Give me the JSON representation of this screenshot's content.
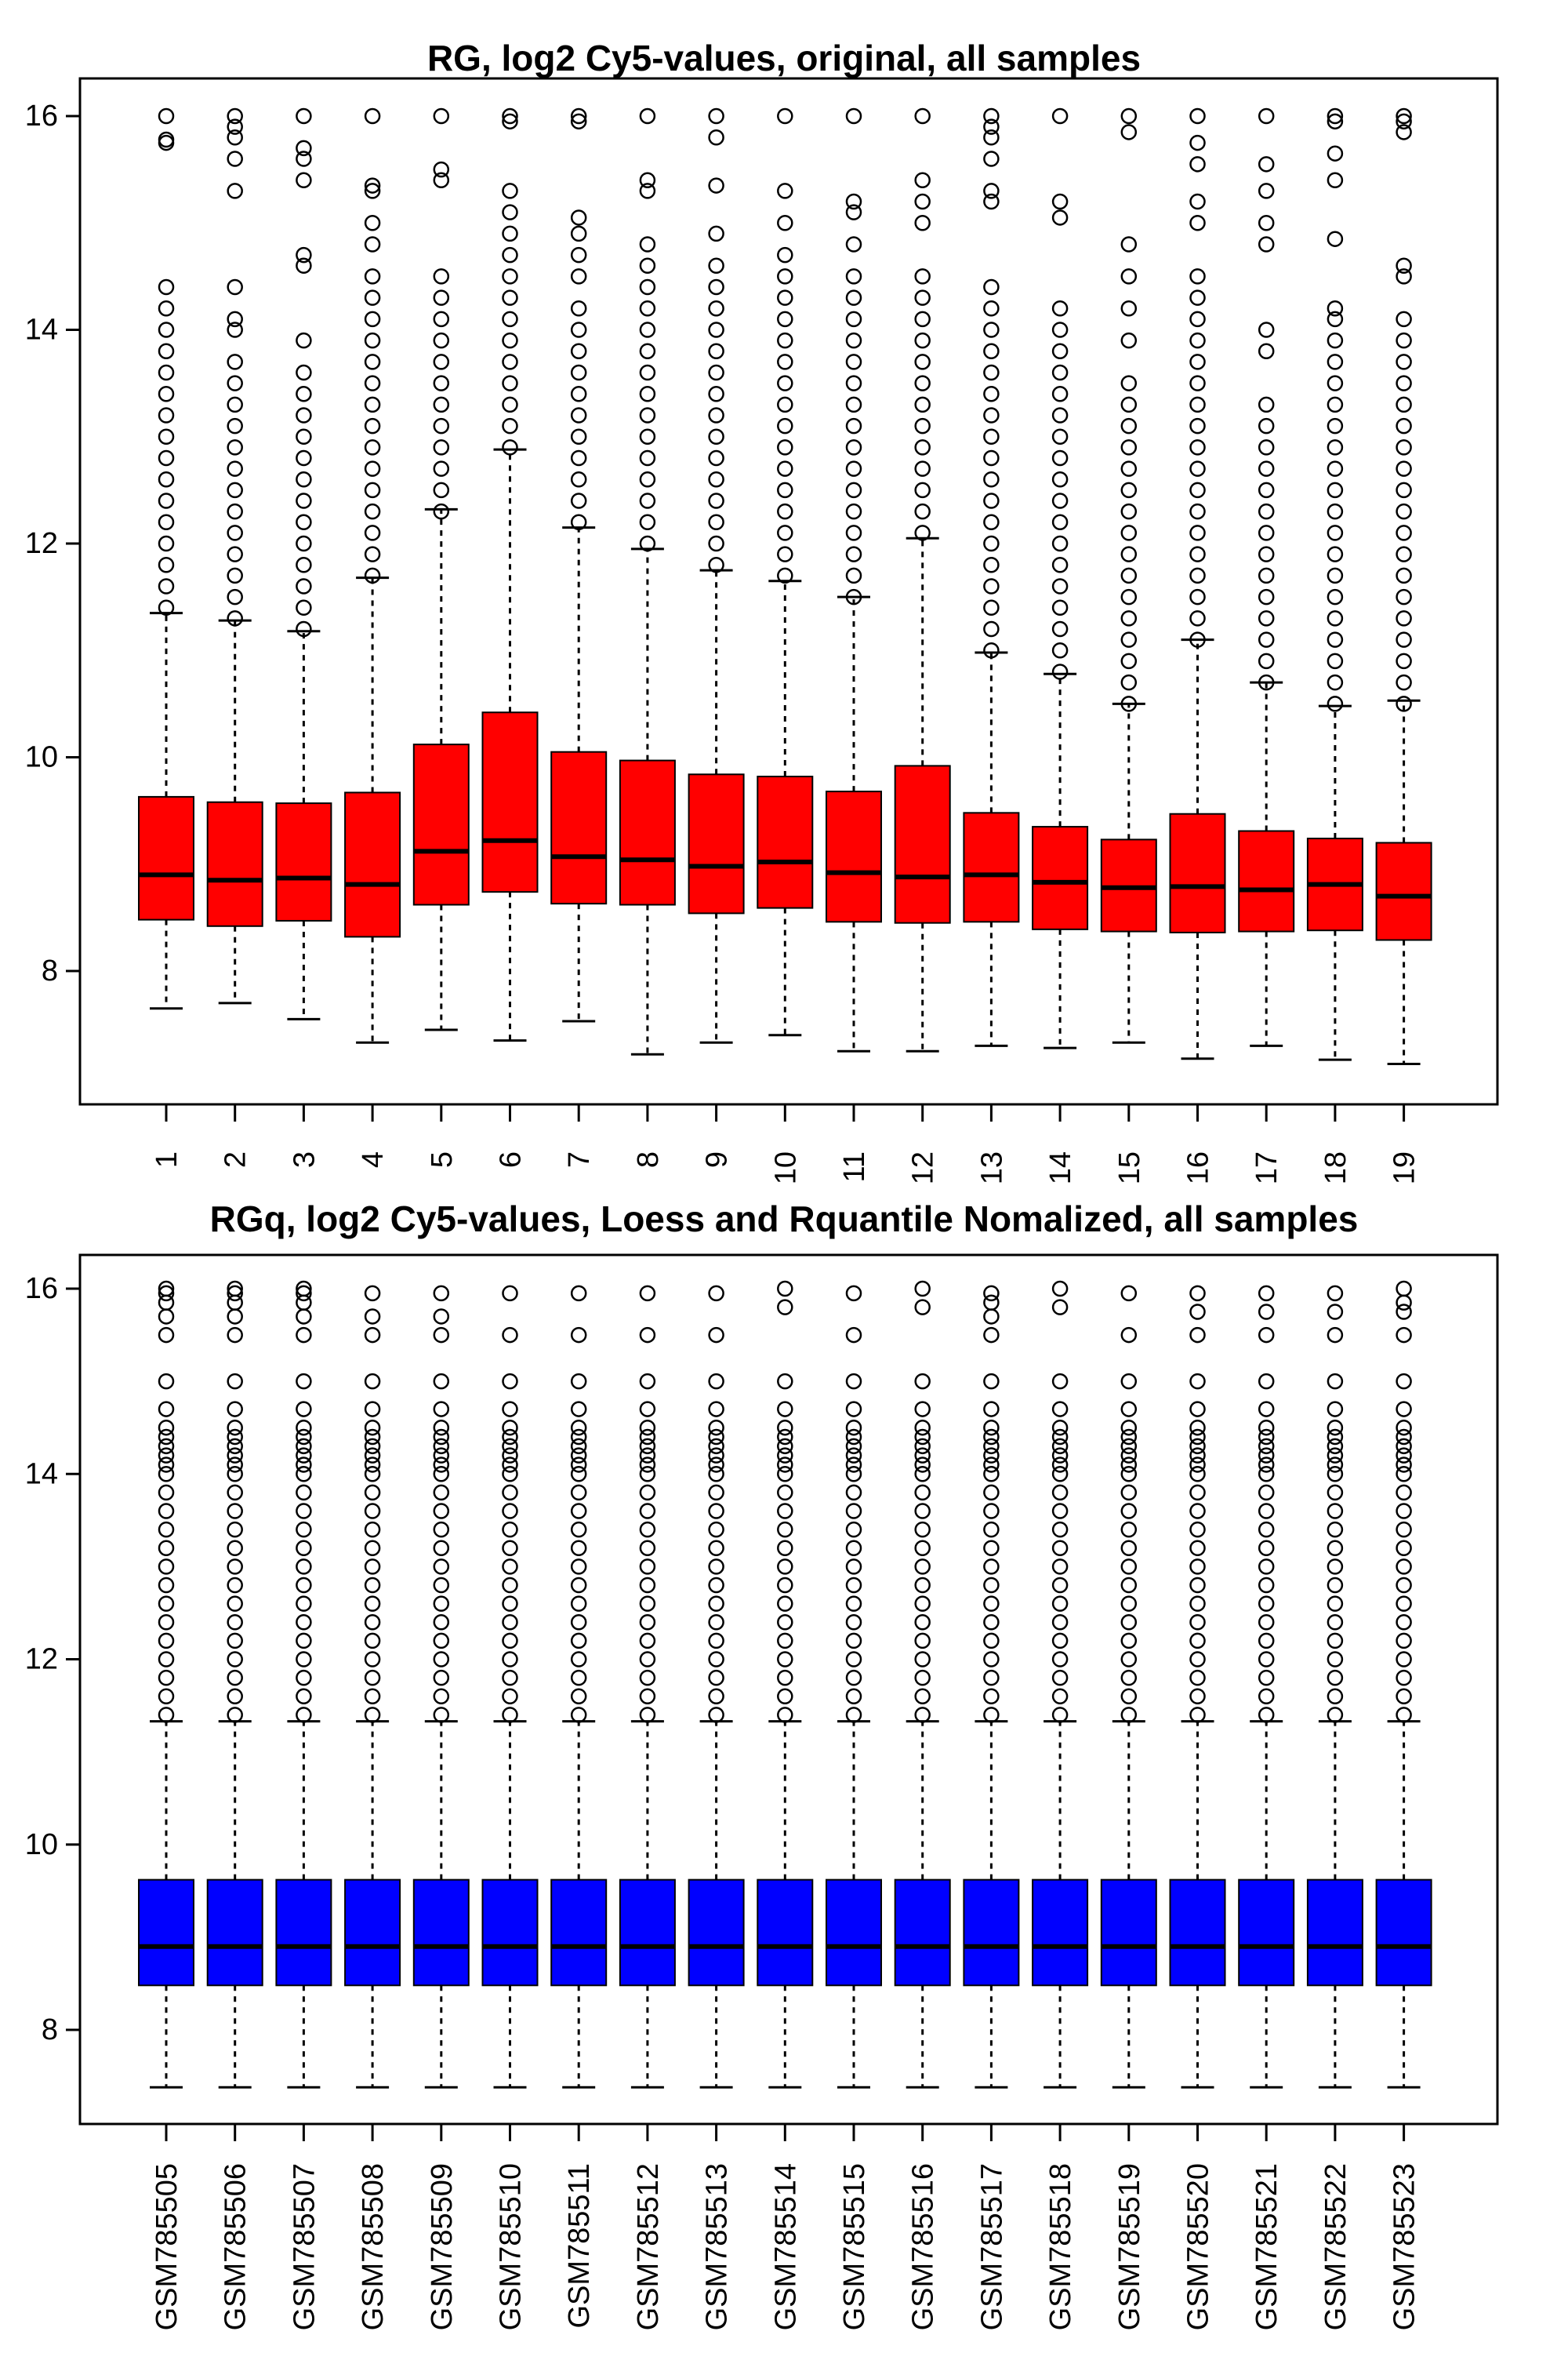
{
  "chart_data": [
    {
      "type": "boxplot",
      "title": "RG, log2 Cy5-values, original, all samples",
      "xlabel": "",
      "ylabel": "",
      "ylim": [
        7.0,
        16.2
      ],
      "y_ticks": [
        8,
        10,
        12,
        14,
        16
      ],
      "box_color": "#ff0000",
      "categories": [
        "1",
        "2",
        "3",
        "4",
        "5",
        "6",
        "7",
        "8",
        "9",
        "10",
        "11",
        "12",
        "13",
        "14",
        "15",
        "16",
        "17",
        "18",
        "19"
      ],
      "boxes": [
        {
          "whisker_low": 7.65,
          "q1": 8.48,
          "median": 8.9,
          "q3": 9.63,
          "whisker_high": 11.35,
          "outliers": [
            11.4,
            11.6,
            11.8,
            12.0,
            12.2,
            12.4,
            12.6,
            12.8,
            13.0,
            13.2,
            13.4,
            13.6,
            13.8,
            14.0,
            14.2,
            14.4,
            15.75,
            15.78,
            16.0
          ]
        },
        {
          "whisker_low": 7.7,
          "q1": 8.42,
          "median": 8.85,
          "q3": 9.58,
          "whisker_high": 11.28,
          "outliers": [
            11.3,
            11.5,
            11.7,
            11.9,
            12.1,
            12.3,
            12.5,
            12.7,
            12.9,
            13.1,
            13.3,
            13.5,
            13.7,
            14.0,
            14.1,
            14.4,
            15.3,
            15.6,
            15.8,
            15.9,
            16.0
          ]
        },
        {
          "whisker_low": 7.55,
          "q1": 8.47,
          "median": 8.87,
          "q3": 9.57,
          "whisker_high": 11.18,
          "outliers": [
            11.2,
            11.4,
            11.6,
            11.8,
            12.0,
            12.2,
            12.4,
            12.6,
            12.8,
            13.0,
            13.2,
            13.4,
            13.6,
            13.9,
            14.6,
            14.7,
            15.4,
            15.6,
            15.7,
            16.0
          ]
        },
        {
          "whisker_low": 7.33,
          "q1": 8.32,
          "median": 8.81,
          "q3": 9.67,
          "whisker_high": 11.68,
          "outliers": [
            11.7,
            11.9,
            12.1,
            12.3,
            12.5,
            12.7,
            12.9,
            13.1,
            13.3,
            13.5,
            13.7,
            13.9,
            14.1,
            14.3,
            14.5,
            14.8,
            15.0,
            15.3,
            15.35,
            16.0
          ]
        },
        {
          "whisker_low": 7.45,
          "q1": 8.62,
          "median": 9.12,
          "q3": 10.12,
          "whisker_high": 12.32,
          "outliers": [
            12.3,
            12.5,
            12.7,
            12.9,
            13.1,
            13.3,
            13.5,
            13.7,
            13.9,
            14.1,
            14.3,
            14.5,
            15.4,
            15.5,
            16.0
          ]
        },
        {
          "whisker_low": 7.35,
          "q1": 8.74,
          "median": 9.22,
          "q3": 10.42,
          "whisker_high": 12.88,
          "outliers": [
            12.9,
            13.1,
            13.3,
            13.5,
            13.7,
            13.9,
            14.1,
            14.3,
            14.5,
            14.7,
            14.9,
            15.1,
            15.3,
            15.95,
            16.0
          ]
        },
        {
          "whisker_low": 7.53,
          "q1": 8.63,
          "median": 9.07,
          "q3": 10.05,
          "whisker_high": 12.15,
          "outliers": [
            12.2,
            12.4,
            12.6,
            12.8,
            13.0,
            13.2,
            13.4,
            13.6,
            13.8,
            14.0,
            14.2,
            14.5,
            14.7,
            14.9,
            15.05,
            15.95,
            16.0
          ]
        },
        {
          "whisker_low": 7.22,
          "q1": 8.62,
          "median": 9.04,
          "q3": 9.97,
          "whisker_high": 11.95,
          "outliers": [
            12.0,
            12.2,
            12.4,
            12.6,
            12.8,
            13.0,
            13.2,
            13.4,
            13.6,
            13.8,
            14.0,
            14.2,
            14.4,
            14.6,
            14.8,
            15.3,
            15.4,
            16.0
          ]
        },
        {
          "whisker_low": 7.33,
          "q1": 8.54,
          "median": 8.98,
          "q3": 9.84,
          "whisker_high": 11.75,
          "outliers": [
            11.8,
            12.0,
            12.2,
            12.4,
            12.6,
            12.8,
            13.0,
            13.2,
            13.4,
            13.6,
            13.8,
            14.0,
            14.2,
            14.4,
            14.6,
            14.9,
            15.35,
            15.8,
            16.0
          ]
        },
        {
          "whisker_low": 7.4,
          "q1": 8.59,
          "median": 9.02,
          "q3": 9.82,
          "whisker_high": 11.65,
          "outliers": [
            11.7,
            11.9,
            12.1,
            12.3,
            12.5,
            12.7,
            12.9,
            13.1,
            13.3,
            13.5,
            13.7,
            13.9,
            14.1,
            14.3,
            14.5,
            14.7,
            15.0,
            15.3,
            16.0
          ]
        },
        {
          "whisker_low": 7.25,
          "q1": 8.46,
          "median": 8.92,
          "q3": 9.68,
          "whisker_high": 11.5,
          "outliers": [
            11.5,
            11.7,
            11.9,
            12.1,
            12.3,
            12.5,
            12.7,
            12.9,
            13.1,
            13.3,
            13.5,
            13.7,
            13.9,
            14.1,
            14.3,
            14.5,
            14.8,
            15.1,
            15.2,
            16.0
          ]
        },
        {
          "whisker_low": 7.25,
          "q1": 8.45,
          "median": 8.88,
          "q3": 9.92,
          "whisker_high": 12.05,
          "outliers": [
            12.1,
            12.3,
            12.5,
            12.7,
            12.9,
            13.1,
            13.3,
            13.5,
            13.7,
            13.9,
            14.1,
            14.3,
            14.5,
            15.0,
            15.2,
            15.4,
            16.0
          ]
        },
        {
          "whisker_low": 7.3,
          "q1": 8.46,
          "median": 8.9,
          "q3": 9.48,
          "whisker_high": 10.98,
          "outliers": [
            11.0,
            11.2,
            11.4,
            11.6,
            11.8,
            12.0,
            12.2,
            12.4,
            12.6,
            12.8,
            13.0,
            13.2,
            13.4,
            13.6,
            13.8,
            14.0,
            14.2,
            14.4,
            15.2,
            15.3,
            15.6,
            15.8,
            15.9,
            16.0
          ]
        },
        {
          "whisker_low": 7.28,
          "q1": 8.39,
          "median": 8.83,
          "q3": 9.35,
          "whisker_high": 10.78,
          "outliers": [
            10.8,
            11.0,
            11.2,
            11.4,
            11.6,
            11.8,
            12.0,
            12.2,
            12.4,
            12.6,
            12.8,
            13.0,
            13.2,
            13.4,
            13.6,
            13.8,
            14.0,
            14.2,
            15.05,
            15.2,
            16.0
          ]
        },
        {
          "whisker_low": 7.33,
          "q1": 8.37,
          "median": 8.78,
          "q3": 9.23,
          "whisker_high": 10.5,
          "outliers": [
            10.5,
            10.7,
            10.9,
            11.1,
            11.3,
            11.5,
            11.7,
            11.9,
            12.1,
            12.3,
            12.5,
            12.7,
            12.9,
            13.1,
            13.3,
            13.5,
            13.9,
            14.2,
            14.5,
            14.8,
            15.85,
            16.0
          ]
        },
        {
          "whisker_low": 7.18,
          "q1": 8.36,
          "median": 8.79,
          "q3": 9.47,
          "whisker_high": 11.1,
          "outliers": [
            11.1,
            11.3,
            11.5,
            11.7,
            11.9,
            12.1,
            12.3,
            12.5,
            12.7,
            12.9,
            13.1,
            13.3,
            13.5,
            13.7,
            13.9,
            14.1,
            14.3,
            14.5,
            15.0,
            15.2,
            15.55,
            15.75,
            16.0
          ]
        },
        {
          "whisker_low": 7.3,
          "q1": 8.37,
          "median": 8.76,
          "q3": 9.31,
          "whisker_high": 10.7,
          "outliers": [
            10.7,
            10.9,
            11.1,
            11.3,
            11.5,
            11.7,
            11.9,
            12.1,
            12.3,
            12.5,
            12.7,
            12.9,
            13.1,
            13.3,
            13.8,
            14.0,
            14.8,
            15.0,
            15.3,
            15.55,
            16.0
          ]
        },
        {
          "whisker_low": 7.17,
          "q1": 8.38,
          "median": 8.81,
          "q3": 9.24,
          "whisker_high": 10.48,
          "outliers": [
            10.5,
            10.7,
            10.9,
            11.1,
            11.3,
            11.5,
            11.7,
            11.9,
            12.1,
            12.3,
            12.5,
            12.7,
            12.9,
            13.1,
            13.3,
            13.5,
            13.7,
            13.9,
            14.1,
            14.2,
            14.85,
            15.4,
            15.65,
            15.95,
            16.0
          ]
        },
        {
          "whisker_low": 7.13,
          "q1": 8.29,
          "median": 8.7,
          "q3": 9.2,
          "whisker_high": 10.53,
          "outliers": [
            10.5,
            10.7,
            10.9,
            11.1,
            11.3,
            11.5,
            11.7,
            11.9,
            12.1,
            12.3,
            12.5,
            12.7,
            12.9,
            13.1,
            13.3,
            13.5,
            13.7,
            13.9,
            14.1,
            14.5,
            14.6,
            15.85,
            15.95,
            16.0
          ]
        }
      ]
    },
    {
      "type": "boxplot",
      "title": "RGq, log2 Cy5-values, Loess and Rquantile Nomalized, all samples",
      "xlabel": "",
      "ylabel": "",
      "ylim": [
        7.0,
        16.2
      ],
      "y_ticks": [
        8,
        10,
        12,
        14,
        16
      ],
      "box_color": "#0000ff",
      "categories": [
        "GSM785505",
        "GSM785506",
        "GSM785507",
        "GSM785508",
        "GSM785509",
        "GSM785510",
        "GSM785511",
        "GSM785512",
        "GSM785513",
        "GSM785514",
        "GSM785515",
        "GSM785516",
        "GSM785517",
        "GSM785518",
        "GSM785519",
        "GSM785520",
        "GSM785521",
        "GSM785522",
        "GSM785523"
      ],
      "shared_box": {
        "whisker_low": 7.38,
        "q1": 8.48,
        "median": 8.9,
        "q3": 9.62,
        "whisker_high": 11.33
      },
      "outlier_sets": [
        [
          11.4,
          11.6,
          11.8,
          12.0,
          12.2,
          12.4,
          12.6,
          12.8,
          13.0,
          13.2,
          13.4,
          13.6,
          13.8,
          14.0,
          14.1,
          14.2,
          14.3,
          14.4,
          14.5,
          14.7,
          15.0,
          15.5,
          15.7,
          15.85,
          15.95,
          16.0
        ],
        [
          11.4,
          11.6,
          11.8,
          12.0,
          12.2,
          12.4,
          12.6,
          12.8,
          13.0,
          13.2,
          13.4,
          13.6,
          13.8,
          14.0,
          14.1,
          14.2,
          14.3,
          14.4,
          14.5,
          14.7,
          15.0,
          15.5,
          15.7,
          15.85,
          15.95,
          16.0
        ],
        [
          11.4,
          11.6,
          11.8,
          12.0,
          12.2,
          12.4,
          12.6,
          12.8,
          13.0,
          13.2,
          13.4,
          13.6,
          13.8,
          14.0,
          14.1,
          14.2,
          14.3,
          14.4,
          14.5,
          14.7,
          15.0,
          15.5,
          15.7,
          15.85,
          15.95,
          16.0
        ],
        [
          11.4,
          11.6,
          11.8,
          12.0,
          12.2,
          12.4,
          12.6,
          12.8,
          13.0,
          13.2,
          13.4,
          13.6,
          13.8,
          14.0,
          14.1,
          14.2,
          14.3,
          14.4,
          14.5,
          14.7,
          15.0,
          15.5,
          15.7,
          15.95
        ],
        [
          11.4,
          11.6,
          11.8,
          12.0,
          12.2,
          12.4,
          12.6,
          12.8,
          13.0,
          13.2,
          13.4,
          13.6,
          13.8,
          14.0,
          14.1,
          14.2,
          14.3,
          14.4,
          14.5,
          14.7,
          15.0,
          15.5,
          15.7,
          15.95
        ],
        [
          11.4,
          11.6,
          11.8,
          12.0,
          12.2,
          12.4,
          12.6,
          12.8,
          13.0,
          13.2,
          13.4,
          13.6,
          13.8,
          14.0,
          14.1,
          14.2,
          14.3,
          14.4,
          14.5,
          14.7,
          15.0,
          15.5,
          15.95
        ],
        [
          11.4,
          11.6,
          11.8,
          12.0,
          12.2,
          12.4,
          12.6,
          12.8,
          13.0,
          13.2,
          13.4,
          13.6,
          13.8,
          14.0,
          14.1,
          14.2,
          14.3,
          14.4,
          14.5,
          14.7,
          15.0,
          15.5,
          15.95
        ],
        [
          11.4,
          11.6,
          11.8,
          12.0,
          12.2,
          12.4,
          12.6,
          12.8,
          13.0,
          13.2,
          13.4,
          13.6,
          13.8,
          14.0,
          14.1,
          14.2,
          14.3,
          14.4,
          14.5,
          14.7,
          15.0,
          15.5,
          15.95
        ],
        [
          11.4,
          11.6,
          11.8,
          12.0,
          12.2,
          12.4,
          12.6,
          12.8,
          13.0,
          13.2,
          13.4,
          13.6,
          13.8,
          14.0,
          14.1,
          14.2,
          14.3,
          14.4,
          14.5,
          14.7,
          15.0,
          15.5,
          15.95
        ],
        [
          11.4,
          11.6,
          11.8,
          12.0,
          12.2,
          12.4,
          12.6,
          12.8,
          13.0,
          13.2,
          13.4,
          13.6,
          13.8,
          14.0,
          14.1,
          14.2,
          14.3,
          14.4,
          14.5,
          14.7,
          15.0,
          15.8,
          16.0
        ],
        [
          11.4,
          11.6,
          11.8,
          12.0,
          12.2,
          12.4,
          12.6,
          12.8,
          13.0,
          13.2,
          13.4,
          13.6,
          13.8,
          14.0,
          14.1,
          14.2,
          14.3,
          14.4,
          14.5,
          14.7,
          15.0,
          15.5,
          15.95
        ],
        [
          11.4,
          11.6,
          11.8,
          12.0,
          12.2,
          12.4,
          12.6,
          12.8,
          13.0,
          13.2,
          13.4,
          13.6,
          13.8,
          14.0,
          14.1,
          14.2,
          14.3,
          14.4,
          14.5,
          14.7,
          15.0,
          15.8,
          16.0
        ],
        [
          11.4,
          11.6,
          11.8,
          12.0,
          12.2,
          12.4,
          12.6,
          12.8,
          13.0,
          13.2,
          13.4,
          13.6,
          13.8,
          14.0,
          14.1,
          14.2,
          14.3,
          14.4,
          14.5,
          14.7,
          15.0,
          15.5,
          15.7,
          15.85,
          15.95
        ],
        [
          11.4,
          11.6,
          11.8,
          12.0,
          12.2,
          12.4,
          12.6,
          12.8,
          13.0,
          13.2,
          13.4,
          13.6,
          13.8,
          14.0,
          14.1,
          14.2,
          14.3,
          14.4,
          14.5,
          14.7,
          15.0,
          15.8,
          16.0
        ],
        [
          11.4,
          11.6,
          11.8,
          12.0,
          12.2,
          12.4,
          12.6,
          12.8,
          13.0,
          13.2,
          13.4,
          13.6,
          13.8,
          14.0,
          14.1,
          14.2,
          14.3,
          14.4,
          14.5,
          14.7,
          15.0,
          15.5,
          15.95
        ],
        [
          11.4,
          11.6,
          11.8,
          12.0,
          12.2,
          12.4,
          12.6,
          12.8,
          13.0,
          13.2,
          13.4,
          13.6,
          13.8,
          14.0,
          14.1,
          14.2,
          14.3,
          14.4,
          14.5,
          14.7,
          15.0,
          15.5,
          15.75,
          15.95
        ],
        [
          11.4,
          11.6,
          11.8,
          12.0,
          12.2,
          12.4,
          12.6,
          12.8,
          13.0,
          13.2,
          13.4,
          13.6,
          13.8,
          14.0,
          14.1,
          14.2,
          14.3,
          14.4,
          14.5,
          14.7,
          15.0,
          15.5,
          15.75,
          15.95
        ],
        [
          11.4,
          11.6,
          11.8,
          12.0,
          12.2,
          12.4,
          12.6,
          12.8,
          13.0,
          13.2,
          13.4,
          13.6,
          13.8,
          14.0,
          14.1,
          14.2,
          14.3,
          14.4,
          14.5,
          14.7,
          15.0,
          15.5,
          15.75,
          15.95
        ],
        [
          11.4,
          11.6,
          11.8,
          12.0,
          12.2,
          12.4,
          12.6,
          12.8,
          13.0,
          13.2,
          13.4,
          13.6,
          13.8,
          14.0,
          14.1,
          14.2,
          14.3,
          14.4,
          14.5,
          14.7,
          15.0,
          15.5,
          15.75,
          15.85,
          16.0
        ]
      ]
    }
  ]
}
